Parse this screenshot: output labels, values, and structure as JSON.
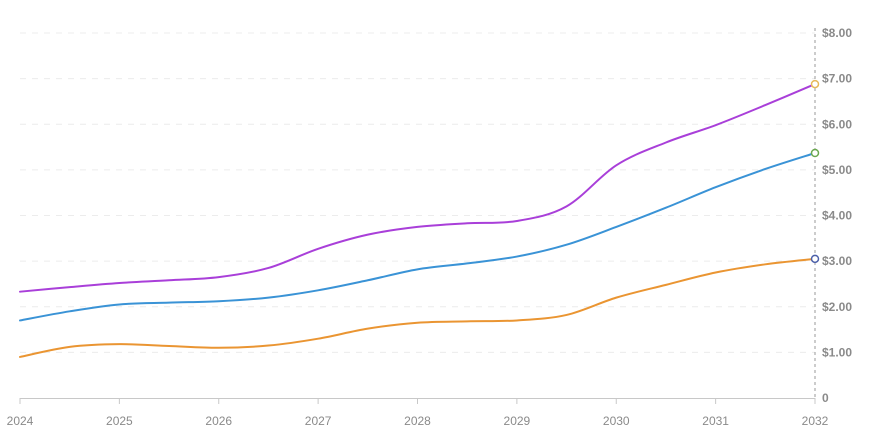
{
  "chart_data": {
    "type": "line",
    "title": "",
    "xlabel": "",
    "ylabel": "",
    "x": [
      2024,
      2024.5,
      2025,
      2025.5,
      2026,
      2026.5,
      2027,
      2027.5,
      2028,
      2028.5,
      2029,
      2029.5,
      2030,
      2030.5,
      2031,
      2031.5,
      2032
    ],
    "x_tick_labels": [
      "2024",
      "2025",
      "2026",
      "2027",
      "2028",
      "2029",
      "2030",
      "2031",
      "2032"
    ],
    "y_tick_labels": [
      "0",
      "$1.00",
      "$2.00",
      "$3.00",
      "$4.00",
      "$5.00",
      "$6.00",
      "$7.00",
      "$8.00"
    ],
    "xlim": [
      2024,
      2032
    ],
    "ylim": [
      0,
      8
    ],
    "grid": true,
    "y_axis_position": "right",
    "series": [
      {
        "color": "#a93fd9",
        "values": [
          2.33,
          2.43,
          2.52,
          2.58,
          2.65,
          2.85,
          3.27,
          3.58,
          3.75,
          3.83,
          3.88,
          4.2,
          5.1,
          5.6,
          5.98,
          6.42,
          6.88
        ]
      },
      {
        "color": "#3a93d6",
        "values": [
          1.7,
          1.9,
          2.05,
          2.09,
          2.12,
          2.2,
          2.36,
          2.58,
          2.82,
          2.95,
          3.1,
          3.36,
          3.75,
          4.17,
          4.62,
          5.02,
          5.37
        ]
      },
      {
        "color": "#ea9532",
        "values": [
          0.9,
          1.12,
          1.18,
          1.14,
          1.1,
          1.15,
          1.3,
          1.52,
          1.65,
          1.68,
          1.7,
          1.82,
          2.2,
          2.48,
          2.75,
          2.93,
          3.05
        ]
      }
    ],
    "end_markers": [
      {
        "series": 0,
        "stroke": "#e7b95a"
      },
      {
        "series": 1,
        "stroke": "#6aa84f"
      },
      {
        "series": 2,
        "stroke": "#4b5fa8"
      }
    ]
  }
}
